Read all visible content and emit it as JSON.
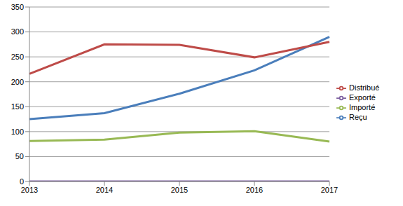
{
  "chart_data": {
    "type": "line",
    "categories": [
      "2013",
      "2014",
      "2015",
      "2016",
      "2017"
    ],
    "series": [
      {
        "name": "Reçu",
        "color": "#4a7ebb",
        "values": [
          125,
          137,
          176,
          223,
          290
        ]
      },
      {
        "name": "Distribué",
        "color": "#be4b48",
        "values": [
          216,
          275,
          274,
          249,
          280
        ]
      },
      {
        "name": "Importé",
        "color": "#98b954",
        "values": [
          81,
          84,
          98,
          101,
          80
        ]
      },
      {
        "name": "Exporté",
        "color": "#7d60a0",
        "values": [
          0,
          0,
          0,
          0,
          0
        ]
      }
    ],
    "ylim": [
      0,
      350
    ],
    "yticks": [
      0,
      50,
      100,
      150,
      200,
      250,
      300,
      350
    ],
    "grid": true,
    "legend": "right"
  }
}
